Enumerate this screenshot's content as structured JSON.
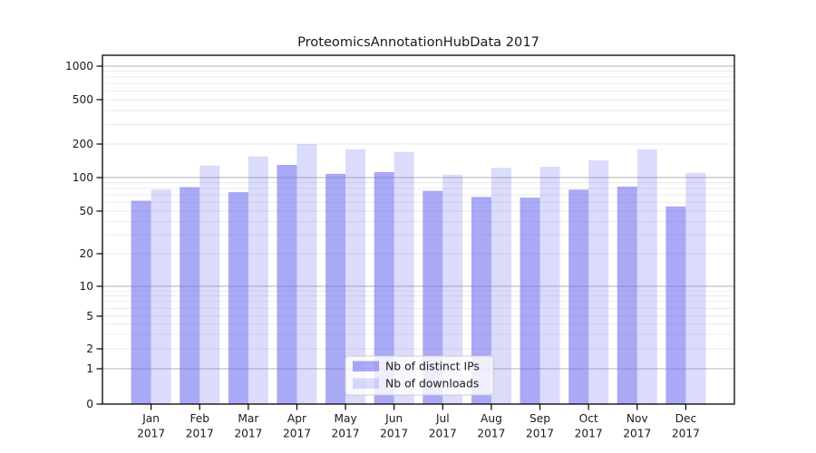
{
  "chart_data": {
    "type": "bar",
    "title": "ProteomicsAnnotationHubData 2017",
    "yscale": "symlog",
    "ylim": [
      0,
      1250
    ],
    "grid": true,
    "legend_position": "lower center",
    "x_months": [
      "Jan",
      "Feb",
      "Mar",
      "Apr",
      "May",
      "Jun",
      "Jul",
      "Aug",
      "Sep",
      "Oct",
      "Nov",
      "Dec"
    ],
    "x_year": "2017",
    "categories": [
      "Jan 2017",
      "Feb 2017",
      "Mar 2017",
      "Apr 2017",
      "May 2017",
      "Jun 2017",
      "Jul 2017",
      "Aug 2017",
      "Sep 2017",
      "Oct 2017",
      "Nov 2017",
      "Dec 2017"
    ],
    "y_ticks": [
      0,
      1,
      2,
      5,
      10,
      20,
      50,
      100,
      200,
      500,
      1000
    ],
    "y_major_gridlines": [
      1,
      10,
      100,
      1000
    ],
    "series": [
      {
        "name": "Nb of distinct IPs",
        "values": [
          62,
          82,
          74,
          130,
          108,
          112,
          76,
          67,
          66,
          78,
          83,
          55
        ],
        "color": "#7070ee",
        "opacity": 0.6
      },
      {
        "name": "Nb of downloads",
        "values": [
          78,
          128,
          155,
          200,
          180,
          170,
          106,
          122,
          125,
          143,
          180,
          110
        ],
        "color": "#7070ee",
        "opacity": 0.25
      }
    ]
  },
  "colors": {
    "bar_base": "#7070ee",
    "grid_major": "#b0b0b0",
    "grid_minor": "#e8e8e8",
    "axis": "#000000",
    "text": "#1a1a1a",
    "legend_border": "#cccccc",
    "legend_fill": "#ffffff"
  }
}
